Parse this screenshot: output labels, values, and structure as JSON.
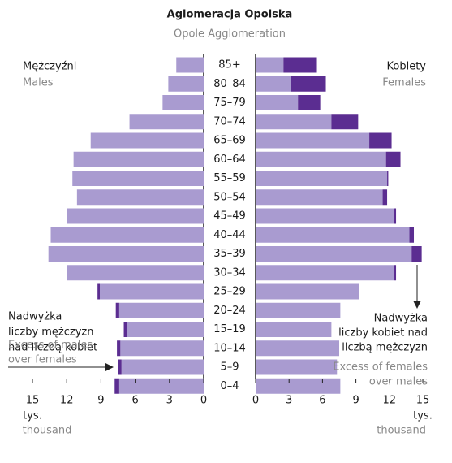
{
  "chart_data": {
    "type": "pyramid",
    "title": "Aglomeracja Opolska",
    "subtitle": "Opole Agglomeration",
    "left_label": "Mężczyźni",
    "left_label_en": "Males",
    "right_label": "Kobiety",
    "right_label_en": "Females",
    "categories": [
      "85+",
      "80–84",
      "75–79",
      "70–74",
      "65–69",
      "60–64",
      "55–59",
      "50–54",
      "45–49",
      "40–44",
      "35–39",
      "30–34",
      "25–29",
      "20–24",
      "15–19",
      "10–14",
      "5–9",
      "0–4"
    ],
    "left_series": [
      {
        "color": "#a99bd0",
        "values": [
          2.4,
          3.1,
          3.6,
          6.5,
          9.9,
          11.4,
          11.5,
          11.1,
          12.0,
          13.4,
          13.6,
          12.0,
          9.1,
          7.4,
          6.7,
          7.3,
          7.2,
          7.4
        ]
      },
      {
        "color": "#5b2d91",
        "values": [
          0,
          0,
          0,
          0,
          0,
          0,
          0,
          0,
          0,
          0,
          0,
          0,
          0.2,
          0.3,
          0.3,
          0.3,
          0.3,
          0.4
        ]
      }
    ],
    "right_series": [
      {
        "color": "#a99bd0",
        "values": [
          2.5,
          3.2,
          3.8,
          6.8,
          10.2,
          11.7,
          11.8,
          11.4,
          12.4,
          13.8,
          14.0,
          12.4,
          9.3,
          7.6,
          6.8,
          7.5,
          7.3,
          7.6
        ]
      },
      {
        "color": "#5b2d91",
        "values": [
          3.0,
          3.1,
          2.0,
          2.4,
          2.0,
          1.3,
          0.1,
          0.4,
          0.2,
          0.4,
          0.9,
          0.2,
          0,
          0,
          0,
          0,
          0,
          0
        ]
      }
    ],
    "xlim": [
      0,
      15
    ],
    "xticks": [
      0,
      3,
      6,
      9,
      12,
      15
    ],
    "unit": "tys.",
    "unit_en": "thousand",
    "left_annotation": [
      "Nadwyżka",
      "liczby mężczyzn",
      "nad liczbą kobiet"
    ],
    "left_annotation_en": [
      "Excess of males",
      "over females"
    ],
    "right_annotation": [
      "Nadwyżka",
      "liczby kobiet nad",
      "liczbą mężczyzn"
    ],
    "right_annotation_en": [
      "Excess of females",
      "over males"
    ]
  }
}
